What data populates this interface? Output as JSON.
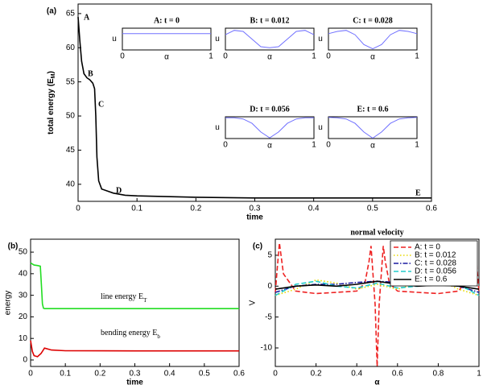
{
  "chart_data": [
    {
      "type": "line",
      "panel_label": "(a)",
      "xlabel": "time",
      "ylabel": [
        "total energy (E",
        "M",
        ")"
      ],
      "xlim": [
        0,
        0.6
      ],
      "ylim": [
        37.5,
        66.4
      ],
      "xticks": [
        0,
        0.1,
        0.2,
        0.3,
        0.4,
        0.5,
        0.6
      ],
      "yticks": [
        40,
        45,
        50,
        55,
        60,
        65
      ],
      "annotations": [
        "A",
        "B",
        "C",
        "D",
        "E"
      ],
      "series": [
        {
          "color": "#000000",
          "dash": "solid",
          "x": [
            0,
            0.003,
            0.006,
            0.01,
            0.015,
            0.02,
            0.025,
            0.028,
            0.03,
            0.032,
            0.035,
            0.04,
            0.05,
            0.06,
            0.08,
            0.1,
            0.15,
            0.2,
            0.3,
            0.4,
            0.5,
            0.6
          ],
          "values": [
            64.5,
            61,
            58,
            56.2,
            55.6,
            55.3,
            54.8,
            54,
            50,
            44,
            40.5,
            39.3,
            39,
            38.7,
            38.4,
            38.3,
            38.2,
            38.1,
            38,
            38,
            38,
            38
          ]
        }
      ]
    },
    {
      "type": "line",
      "title": "A: t = 0",
      "xlabel": "α",
      "ylabel": "u",
      "xlim": [
        0,
        1
      ],
      "ylim": [
        0,
        1
      ],
      "xticks": [
        0,
        1
      ],
      "series": [
        {
          "color": "#7070ff",
          "dash": "solid",
          "x": [
            0,
            1
          ],
          "values": [
            0.75,
            0.75
          ]
        }
      ]
    },
    {
      "type": "line",
      "title": "B: t = 0.012",
      "xlabel": "α",
      "ylabel": "u",
      "xlim": [
        0,
        1
      ],
      "ylim": [
        0,
        1
      ],
      "xticks": [
        0,
        1
      ],
      "series": [
        {
          "color": "#7070ff",
          "dash": "solid",
          "x": [
            0,
            0.1,
            0.2,
            0.3,
            0.4,
            0.5,
            0.6,
            0.7,
            0.8,
            0.9,
            1
          ],
          "values": [
            0.7,
            0.9,
            0.85,
            0.5,
            0.15,
            0.1,
            0.15,
            0.5,
            0.85,
            0.9,
            0.7
          ]
        }
      ]
    },
    {
      "type": "line",
      "title": "C: t = 0.028",
      "xlabel": "α",
      "ylabel": "u",
      "xlim": [
        0,
        1
      ],
      "ylim": [
        0,
        1
      ],
      "xticks": [
        0,
        1
      ],
      "series": [
        {
          "color": "#7070ff",
          "dash": "solid",
          "x": [
            0,
            0.1,
            0.2,
            0.3,
            0.4,
            0.5,
            0.6,
            0.7,
            0.8,
            0.9,
            1
          ],
          "values": [
            0.75,
            0.85,
            0.9,
            0.7,
            0.25,
            0.05,
            0.25,
            0.7,
            0.9,
            0.85,
            0.75
          ]
        }
      ]
    },
    {
      "type": "line",
      "title": "D: t = 0.056",
      "xlabel": "α",
      "ylabel": "u",
      "xlim": [
        0,
        1
      ],
      "ylim": [
        0,
        1
      ],
      "xticks": [
        0,
        1
      ],
      "series": [
        {
          "color": "#7070ff",
          "dash": "solid",
          "x": [
            0,
            0.1,
            0.2,
            0.3,
            0.4,
            0.5,
            0.6,
            0.7,
            0.8,
            0.9,
            1
          ],
          "values": [
            0.95,
            0.95,
            0.9,
            0.7,
            0.3,
            0.03,
            0.3,
            0.7,
            0.9,
            0.95,
            0.95
          ]
        }
      ]
    },
    {
      "type": "line",
      "title": "E: t = 0.6",
      "xlabel": "α",
      "ylabel": "u",
      "xlim": [
        0,
        1
      ],
      "ylim": [
        0,
        1
      ],
      "xticks": [
        0,
        1
      ],
      "series": [
        {
          "color": "#7070ff",
          "dash": "solid",
          "x": [
            0,
            0.1,
            0.2,
            0.3,
            0.4,
            0.5,
            0.6,
            0.7,
            0.8,
            0.9,
            1
          ],
          "values": [
            0.97,
            0.95,
            0.9,
            0.7,
            0.3,
            0.02,
            0.3,
            0.7,
            0.9,
            0.95,
            0.97
          ]
        }
      ]
    },
    {
      "type": "line",
      "panel_label": "(b)",
      "xlabel": "time",
      "ylabel": "energy",
      "xlim": [
        0,
        0.6
      ],
      "ylim": [
        -3,
        56
      ],
      "xticks": [
        0,
        0.1,
        0.2,
        0.3,
        0.4,
        0.5,
        0.6
      ],
      "yticks": [
        0,
        10,
        20,
        30,
        40,
        50
      ],
      "annotations": [
        [
          "line energy E",
          "T"
        ],
        [
          "bending energy E",
          "b"
        ]
      ],
      "series": [
        {
          "color": "#22dd22",
          "dash": "solid",
          "x": [
            0,
            0.005,
            0.01,
            0.02,
            0.028,
            0.031,
            0.034,
            0.037,
            0.04,
            0.1,
            0.3,
            0.6
          ],
          "values": [
            45,
            44.5,
            44,
            43.8,
            43.5,
            35,
            26,
            24,
            23.8,
            23.8,
            23.8,
            23.8
          ]
        },
        {
          "color": "#dd0000",
          "dash": "solid",
          "x": [
            0,
            0.005,
            0.01,
            0.02,
            0.03,
            0.04,
            0.06,
            0.1,
            0.3,
            0.6
          ],
          "values": [
            9,
            4,
            2,
            1.5,
            3,
            5.5,
            4.6,
            4.3,
            4.2,
            4.2
          ]
        }
      ]
    },
    {
      "type": "line",
      "panel_label": "(c)",
      "title": "normal velocity",
      "xlabel": "α",
      "ylabel": "V",
      "xlim": [
        0,
        1
      ],
      "ylim": [
        -13,
        7.6
      ],
      "xticks": [
        0,
        0.2,
        0.4,
        0.6,
        0.8,
        1
      ],
      "yticks": [
        -10,
        -5,
        0,
        5
      ],
      "legend": "upper right",
      "series": [
        {
          "name": "A: t = 0",
          "color": "#ee2222",
          "dash": "dashed",
          "x": [
            0,
            0.01,
            0.02,
            0.04,
            0.1,
            0.2,
            0.3,
            0.4,
            0.44,
            0.46,
            0.47,
            0.49,
            0.5,
            0.51,
            0.53,
            0.54,
            0.56,
            0.6,
            0.7,
            0.8,
            0.9,
            0.96,
            0.98,
            0.99,
            1
          ],
          "values": [
            -1,
            3,
            7,
            2,
            -0.8,
            -1.2,
            -1,
            -0.8,
            0.5,
            4,
            6.5,
            -3,
            -13,
            -3,
            6.5,
            4,
            0.5,
            -0.8,
            -1,
            -1.2,
            -0.8,
            2,
            7,
            3,
            -1
          ]
        },
        {
          "name": "B: t = 0.012",
          "color": "#e8d800",
          "dash": "dotted",
          "x": [
            0,
            0.1,
            0.2,
            0.3,
            0.4,
            0.5,
            0.6,
            0.7,
            0.8,
            0.9,
            1
          ],
          "values": [
            -1.5,
            -0.5,
            1,
            0.5,
            -0.5,
            0.3,
            -0.5,
            0.5,
            1,
            -0.5,
            -1.5
          ]
        },
        {
          "name": "C: t = 0.028",
          "color": "#1a1aa0",
          "dash": "dashdot",
          "x": [
            0,
            0.1,
            0.2,
            0.3,
            0.4,
            0.5,
            0.6,
            0.7,
            0.8,
            0.9,
            1
          ],
          "values": [
            -1,
            0,
            0.3,
            0.3,
            0.6,
            0.8,
            0.6,
            0.3,
            0.3,
            0,
            -1
          ]
        },
        {
          "name": "D: t = 0.056",
          "color": "#22cccc",
          "dash": "dashed",
          "x": [
            0,
            0.1,
            0.2,
            0.3,
            0.4,
            0.5,
            0.6,
            0.7,
            0.8,
            0.9,
            1
          ],
          "values": [
            -1.5,
            0.3,
            0.8,
            0,
            -0.3,
            0.5,
            -0.3,
            0,
            0.8,
            0.3,
            -1.5
          ]
        },
        {
          "name": "E: t = 0.6",
          "color": "#000000",
          "dash": "solid",
          "x": [
            0,
            0.1,
            0.2,
            0.3,
            0.4,
            0.5,
            0.6,
            0.7,
            0.8,
            0.9,
            1
          ],
          "values": [
            -0.5,
            0,
            0.2,
            0,
            0.3,
            0.8,
            0.3,
            0,
            0.2,
            0,
            -0.5
          ]
        }
      ]
    }
  ]
}
